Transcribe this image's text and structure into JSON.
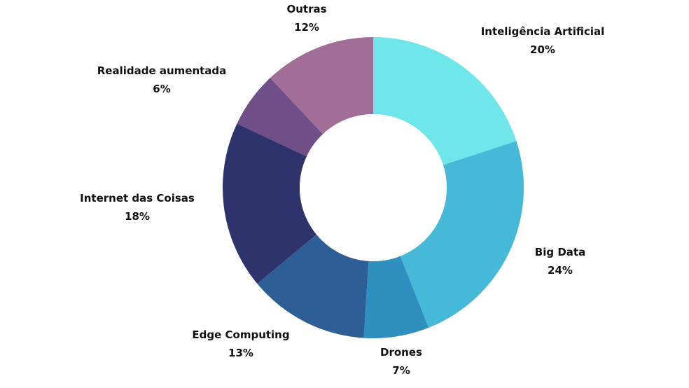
{
  "chart_data": {
    "type": "pie",
    "donut": true,
    "slices": [
      {
        "label": "Inteligência Artificial",
        "value": 20,
        "value_label": "20%",
        "color": "#6ee6ea"
      },
      {
        "label": "Big Data",
        "value": 24,
        "value_label": "24%",
        "color": "#45b9d7"
      },
      {
        "label": "Drones",
        "value": 7,
        "value_label": "7%",
        "color": "#2f8fbf"
      },
      {
        "label": "Edge Computing",
        "value": 13,
        "value_label": "13%",
        "color": "#2e5e96"
      },
      {
        "label": "Internet das Coisas",
        "value": 18,
        "value_label": "18%",
        "color": "#2f336b"
      },
      {
        "label": "Realidade aumentada",
        "value": 6,
        "value_label": "6%",
        "color": "#704e87"
      },
      {
        "label": "Outras",
        "value": 12,
        "value_label": "12%",
        "color": "#a06e96"
      }
    ],
    "legend": "none"
  }
}
